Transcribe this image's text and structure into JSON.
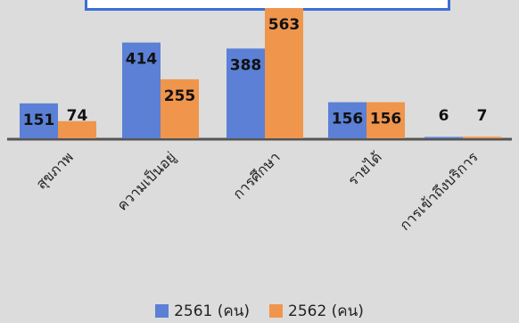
{
  "chart_data": {
    "type": "bar",
    "categories": [
      "สุขภาพ",
      "ความเป็นอยู่",
      "การศึกษา",
      "รายได้",
      "การเข้าถึงบริการ"
    ],
    "series": [
      {
        "name": "2561 (คน)",
        "values": [
          151,
          414,
          388,
          156,
          6
        ],
        "color": "#5b80d6"
      },
      {
        "name": "2562 (คน)",
        "values": [
          74,
          255,
          563,
          156,
          7
        ],
        "color": "#f0954c"
      }
    ],
    "title": "",
    "xlabel": "",
    "ylabel": "",
    "ylim": [
      0,
      563
    ],
    "grid": false,
    "legend": "bottom"
  }
}
